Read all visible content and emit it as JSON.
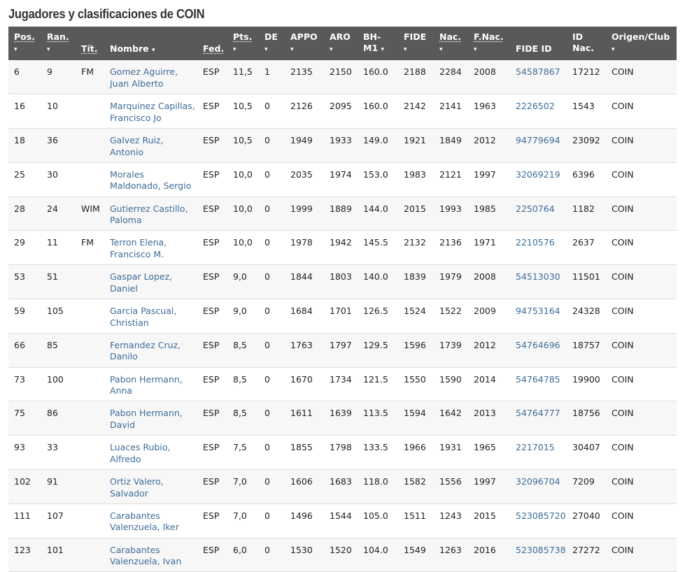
{
  "page": {
    "title": "Jugadores y clasificaciones de COIN"
  },
  "columns": [
    {
      "key": "pos",
      "label": "Pos.",
      "underline": true,
      "arrow": "▾",
      "arrow_below": true
    },
    {
      "key": "ran",
      "label": "Ran.",
      "underline": true,
      "arrow": "▾",
      "arrow_below": true
    },
    {
      "key": "tit",
      "label": "Tít.",
      "underline": true,
      "arrow": "",
      "arrow_below": false
    },
    {
      "key": "nombre",
      "label": "Nombre",
      "underline": false,
      "arrow": "▾",
      "arrow_below": false
    },
    {
      "key": "fed",
      "label": "Fed.",
      "underline": true,
      "arrow": "",
      "arrow_below": false
    },
    {
      "key": "pts",
      "label": "Pts.",
      "underline": true,
      "arrow": "▾",
      "arrow_below": true
    },
    {
      "key": "de",
      "label": "DE",
      "underline": false,
      "arrow": "▾",
      "arrow_below": true
    },
    {
      "key": "appo",
      "label": "APPO",
      "underline": false,
      "arrow": "▾",
      "arrow_below": true
    },
    {
      "key": "aro",
      "label": "ARO",
      "underline": false,
      "arrow": "▾",
      "arrow_below": true
    },
    {
      "key": "bh",
      "label": "BH-\nM1",
      "underline": false,
      "arrow": "▾",
      "arrow_below": false
    },
    {
      "key": "fide",
      "label": "FIDE",
      "underline": false,
      "arrow": "▾",
      "arrow_below": true
    },
    {
      "key": "nac",
      "label": "Nac.",
      "underline": true,
      "arrow": "▾",
      "arrow_below": true
    },
    {
      "key": "fnac",
      "label": "F.Nac.",
      "underline": true,
      "arrow": "▾",
      "arrow_below": true
    },
    {
      "key": "fideid",
      "label": "FIDE ID",
      "underline": false,
      "arrow": "",
      "arrow_below": false
    },
    {
      "key": "idnac",
      "label": "ID\nNac.",
      "underline": false,
      "arrow": "",
      "arrow_below": false
    },
    {
      "key": "club",
      "label": "Origen/Club",
      "underline": false,
      "arrow": "▾",
      "arrow_below": true
    }
  ],
  "rows": [
    {
      "pos": "6",
      "ran": "9",
      "tit": "FM",
      "nombre": "Gomez Aguirre, Juan Alberto",
      "fed": "ESP",
      "pts": "11,5",
      "de": "1",
      "appo": "2135",
      "aro": "2150",
      "bh": "160.0",
      "fide": "2188",
      "nac": "2284",
      "fnac": "2008",
      "fideid": "54587867",
      "idnac": "17212",
      "club": "COIN"
    },
    {
      "pos": "16",
      "ran": "10",
      "tit": "",
      "nombre": "Marquinez Capillas, Francisco Jo",
      "fed": "ESP",
      "pts": "10,5",
      "de": "0",
      "appo": "2126",
      "aro": "2095",
      "bh": "160.0",
      "fide": "2142",
      "nac": "2141",
      "fnac": "1963",
      "fideid": "2226502",
      "idnac": "1543",
      "club": "COIN"
    },
    {
      "pos": "18",
      "ran": "36",
      "tit": "",
      "nombre": "Galvez Ruiz, Antonio",
      "fed": "ESP",
      "pts": "10,5",
      "de": "0",
      "appo": "1949",
      "aro": "1933",
      "bh": "149.0",
      "fide": "1921",
      "nac": "1849",
      "fnac": "2012",
      "fideid": "94779694",
      "idnac": "23092",
      "club": "COIN"
    },
    {
      "pos": "25",
      "ran": "30",
      "tit": "",
      "nombre": "Morales Maldonado, Sergio",
      "fed": "ESP",
      "pts": "10,0",
      "de": "0",
      "appo": "2035",
      "aro": "1974",
      "bh": "153.0",
      "fide": "1983",
      "nac": "2121",
      "fnac": "1997",
      "fideid": "32069219",
      "idnac": "6396",
      "club": "COIN"
    },
    {
      "pos": "28",
      "ran": "24",
      "tit": "WIM",
      "nombre": "Gutierrez Castillo, Paloma",
      "fed": "ESP",
      "pts": "10,0",
      "de": "0",
      "appo": "1999",
      "aro": "1889",
      "bh": "144.0",
      "fide": "2015",
      "nac": "1993",
      "fnac": "1985",
      "fideid": "2250764",
      "idnac": "1182",
      "club": "COIN"
    },
    {
      "pos": "29",
      "ran": "11",
      "tit": "FM",
      "nombre": "Terron Elena, Francisco M.",
      "fed": "ESP",
      "pts": "10,0",
      "de": "0",
      "appo": "1978",
      "aro": "1942",
      "bh": "145.5",
      "fide": "2132",
      "nac": "2136",
      "fnac": "1971",
      "fideid": "2210576",
      "idnac": "2637",
      "club": "COIN"
    },
    {
      "pos": "53",
      "ran": "51",
      "tit": "",
      "nombre": "Gaspar Lopez, Daniel",
      "fed": "ESP",
      "pts": "9,0",
      "de": "0",
      "appo": "1844",
      "aro": "1803",
      "bh": "140.0",
      "fide": "1839",
      "nac": "1979",
      "fnac": "2008",
      "fideid": "54513030",
      "idnac": "11501",
      "club": "COIN"
    },
    {
      "pos": "59",
      "ran": "105",
      "tit": "",
      "nombre": "Garcia Pascual, Christian",
      "fed": "ESP",
      "pts": "9,0",
      "de": "0",
      "appo": "1684",
      "aro": "1701",
      "bh": "126.5",
      "fide": "1524",
      "nac": "1522",
      "fnac": "2009",
      "fideid": "94753164",
      "idnac": "24328",
      "club": "COIN"
    },
    {
      "pos": "66",
      "ran": "85",
      "tit": "",
      "nombre": "Fernandez Cruz, Danilo",
      "fed": "ESP",
      "pts": "8,5",
      "de": "0",
      "appo": "1763",
      "aro": "1797",
      "bh": "129.5",
      "fide": "1596",
      "nac": "1739",
      "fnac": "2012",
      "fideid": "54764696",
      "idnac": "18757",
      "club": "COIN"
    },
    {
      "pos": "73",
      "ran": "100",
      "tit": "",
      "nombre": "Pabon Hermann, Anna",
      "fed": "ESP",
      "pts": "8,5",
      "de": "0",
      "appo": "1670",
      "aro": "1734",
      "bh": "121.5",
      "fide": "1550",
      "nac": "1590",
      "fnac": "2014",
      "fideid": "54764785",
      "idnac": "19900",
      "club": "COIN"
    },
    {
      "pos": "75",
      "ran": "86",
      "tit": "",
      "nombre": "Pabon Hermann, David",
      "fed": "ESP",
      "pts": "8,5",
      "de": "0",
      "appo": "1611",
      "aro": "1639",
      "bh": "113.5",
      "fide": "1594",
      "nac": "1642",
      "fnac": "2013",
      "fideid": "54764777",
      "idnac": "18756",
      "club": "COIN"
    },
    {
      "pos": "93",
      "ran": "33",
      "tit": "",
      "nombre": "Luaces Rubio, Alfredo",
      "fed": "ESP",
      "pts": "7,5",
      "de": "0",
      "appo": "1855",
      "aro": "1798",
      "bh": "133.5",
      "fide": "1966",
      "nac": "1931",
      "fnac": "1965",
      "fideid": "2217015",
      "idnac": "30407",
      "club": "COIN"
    },
    {
      "pos": "102",
      "ran": "91",
      "tit": "",
      "nombre": "Ortiz Valero, Salvador",
      "fed": "ESP",
      "pts": "7,0",
      "de": "0",
      "appo": "1606",
      "aro": "1683",
      "bh": "118.0",
      "fide": "1582",
      "nac": "1556",
      "fnac": "1997",
      "fideid": "32096704",
      "idnac": "7209",
      "club": "COIN"
    },
    {
      "pos": "111",
      "ran": "107",
      "tit": "",
      "nombre": "Carabantes Valenzuela, Iker",
      "fed": "ESP",
      "pts": "7,0",
      "de": "0",
      "appo": "1496",
      "aro": "1544",
      "bh": "105.0",
      "fide": "1511",
      "nac": "1243",
      "fnac": "2015",
      "fideid": "523085720",
      "idnac": "27040",
      "club": "COIN"
    },
    {
      "pos": "123",
      "ran": "101",
      "tit": "",
      "nombre": "Carabantes Valenzuela, Ivan",
      "fed": "ESP",
      "pts": "6,0",
      "de": "0",
      "appo": "1530",
      "aro": "1520",
      "bh": "104.0",
      "fide": "1549",
      "nac": "1263",
      "fnac": "2016",
      "fideid": "523085738",
      "idnac": "27272",
      "club": "COIN"
    }
  ]
}
